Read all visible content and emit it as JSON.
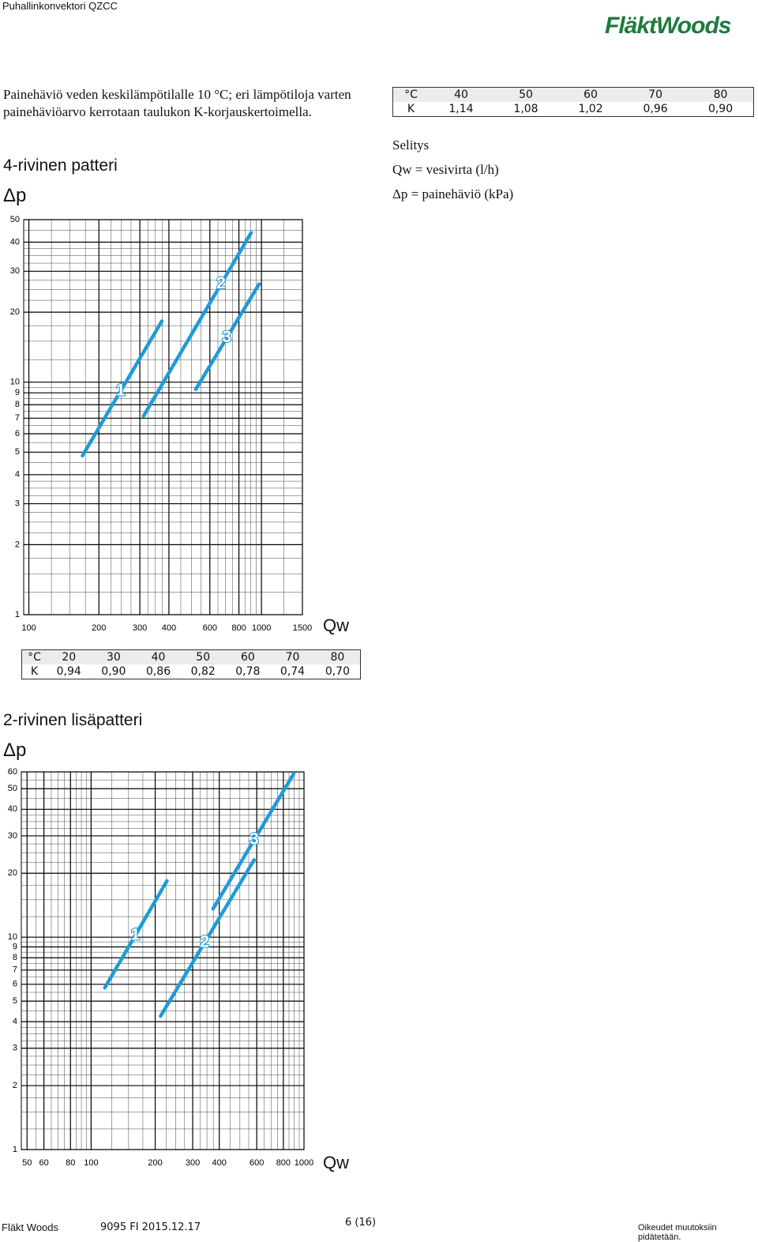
{
  "header": {
    "doc_title": "Puhallinkonvektori QZCC",
    "logo": "FläktWoods"
  },
  "intro": "Painehäviö veden keskilämpötilalle 10 °C; eri lämpötiloja varten painehäviöarvo kerrotaan taulukon K-korjauskertoimella.",
  "legend": {
    "title": "Selitys",
    "lines": [
      "Qw = vesivirta (l/h)",
      "Δp = painehäviö (kPa)"
    ]
  },
  "tables": [
    {
      "rows": [
        [
          "°C",
          "40",
          "50",
          "60",
          "70",
          "80"
        ],
        [
          "K",
          "1,14",
          "1,08",
          "1,02",
          "0,96",
          "0,90"
        ]
      ]
    },
    {
      "rows": [
        [
          "°C",
          "20",
          "30",
          "40",
          "50",
          "60",
          "70",
          "80"
        ],
        [
          "K",
          "0,94",
          "0,90",
          "0,86",
          "0,82",
          "0,78",
          "0,74",
          "0,70"
        ]
      ]
    }
  ],
  "chart_data": [
    {
      "type": "line",
      "title": "4-rivinen patteri",
      "y_label": "Δp",
      "x_label": "Qw",
      "log_x": true,
      "log_y": true,
      "grid": true,
      "color": "#1e9bd7",
      "xlim": [
        95,
        1500
      ],
      "ylim": [
        1,
        50
      ],
      "xticks": [
        100,
        200,
        300,
        400,
        600,
        800,
        1000,
        1500
      ],
      "yticks": [
        1,
        2,
        3,
        4,
        5,
        6,
        7,
        8,
        9,
        10,
        20,
        30,
        40,
        50
      ],
      "series": [
        {
          "name": "1",
          "x": [
            170,
            373
          ],
          "values": [
            4.83,
            18.3
          ]
        },
        {
          "name": "2",
          "x": [
            311,
            903
          ],
          "values": [
            7.14,
            43.9
          ]
        },
        {
          "name": "3",
          "x": [
            522,
            977
          ],
          "values": [
            9.32,
            26.4
          ]
        }
      ]
    },
    {
      "type": "line",
      "title": "2-rivinen lisäpatteri",
      "y_label": "Δp",
      "x_label": "Qw",
      "log_x": true,
      "log_y": true,
      "grid": true,
      "color": "#1e9bd7",
      "xlim": [
        47,
        1000
      ],
      "ylim": [
        1,
        60
      ],
      "xticks": [
        50,
        60,
        80,
        100,
        200,
        300,
        400,
        600,
        800,
        1000
      ],
      "yticks": [
        1,
        2,
        3,
        4,
        5,
        6,
        7,
        8,
        9,
        10,
        20,
        30,
        40,
        50,
        60
      ],
      "series": [
        {
          "name": "1",
          "x": [
            116,
            227
          ],
          "values": [
            5.78,
            18.4
          ]
        },
        {
          "name": "2",
          "x": [
            212,
            583
          ],
          "values": [
            4.25,
            23.1
          ]
        },
        {
          "name": "3",
          "x": [
            374,
            895
          ],
          "values": [
            13.6,
            58.9
          ]
        }
      ]
    }
  ],
  "footer": {
    "company": "Fläkt Woods",
    "code": "9095 FI 2015.12.17",
    "page": "6 (16)",
    "note": "Oikeudet muutoksiin pidätetään."
  }
}
